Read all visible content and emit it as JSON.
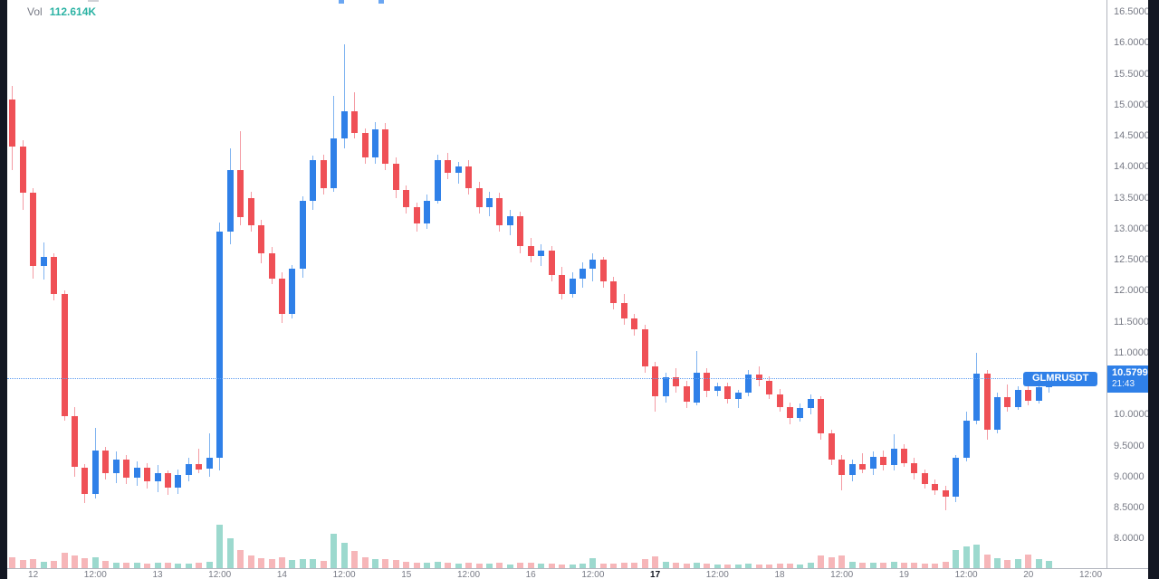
{
  "legend": {
    "vol_label": "Vol",
    "vol_value": "112.614K"
  },
  "symbol_label": "GLMRUSDT",
  "price_tag": {
    "price": "10.5799",
    "countdown": "21:43"
  },
  "colors": {
    "up_body": "#2f80e8",
    "down_body": "#ef5056",
    "up_wick": "#7fb3f0",
    "down_wick": "#f49ba3",
    "vol_up": "#9cd9ce",
    "vol_down": "#f6b6b9",
    "accent_blue": "#2f80e8",
    "axis_text": "#787b86",
    "panel_dark": "#131722",
    "vol_value_teal": "#2cb3a4"
  },
  "price_axis": {
    "labels": [
      "16.5000",
      "16.0000",
      "15.5000",
      "15.0000",
      "14.5000",
      "14.0000",
      "13.5000",
      "13.0000",
      "12.5000",
      "12.0000",
      "11.5000",
      "11.0000",
      "10.5000",
      "10.0000",
      "9.5000",
      "9.0000",
      "8.5000",
      "8.0000"
    ]
  },
  "time_axis": {
    "ticks": [
      {
        "label": "12",
        "index": 2,
        "bold": false
      },
      {
        "label": "12:00",
        "index": 8,
        "bold": false
      },
      {
        "label": "13",
        "index": 14,
        "bold": false
      },
      {
        "label": "12:00",
        "index": 20,
        "bold": false
      },
      {
        "label": "14",
        "index": 26,
        "bold": false
      },
      {
        "label": "12:00",
        "index": 32,
        "bold": false
      },
      {
        "label": "15",
        "index": 38,
        "bold": false
      },
      {
        "label": "12:00",
        "index": 44,
        "bold": false
      },
      {
        "label": "16",
        "index": 50,
        "bold": false
      },
      {
        "label": "12:00",
        "index": 56,
        "bold": false
      },
      {
        "label": "17",
        "index": 62,
        "bold": true
      },
      {
        "label": "12:00",
        "index": 68,
        "bold": false
      },
      {
        "label": "18",
        "index": 74,
        "bold": false
      },
      {
        "label": "12:00",
        "index": 80,
        "bold": false
      },
      {
        "label": "19",
        "index": 86,
        "bold": false
      },
      {
        "label": "12:00",
        "index": 92,
        "bold": false
      },
      {
        "label": "20",
        "index": 98,
        "bold": false
      },
      {
        "label": "12:00",
        "index": 104,
        "bold": false
      }
    ]
  },
  "chart_data": {
    "type": "candlestick",
    "symbol": "GLMRUSDT",
    "interval": "2h",
    "title": "GLMRUSDT with volume",
    "last_price": 10.5799,
    "price_line": 10.5799,
    "ylim": [
      7.52,
      16.69
    ],
    "y_ticks": [
      16.5,
      16.0,
      15.5,
      15.0,
      14.5,
      14.0,
      13.5,
      13.0,
      12.5,
      12.0,
      11.5,
      11.0,
      10.5,
      10.0,
      9.5,
      9.0,
      8.5,
      8.0
    ],
    "x_days": [
      "12",
      "13",
      "14",
      "15",
      "16",
      "17",
      "18",
      "19",
      "20"
    ],
    "legend_position": "top-left",
    "grid": false,
    "candles_ohlcv": [
      [
        15.08,
        15.3,
        13.95,
        14.33,
        300
      ],
      [
        14.33,
        14.43,
        13.3,
        13.58,
        220
      ],
      [
        13.58,
        13.66,
        12.2,
        12.4,
        260
      ],
      [
        12.4,
        12.78,
        12.18,
        12.55,
        180
      ],
      [
        12.55,
        12.6,
        11.85,
        11.95,
        200
      ],
      [
        11.95,
        12.0,
        9.9,
        9.98,
        420
      ],
      [
        9.98,
        10.12,
        9.0,
        9.15,
        350
      ],
      [
        9.15,
        9.2,
        8.58,
        8.72,
        280
      ],
      [
        8.72,
        9.78,
        8.65,
        9.42,
        300
      ],
      [
        9.42,
        9.48,
        8.95,
        9.05,
        200
      ],
      [
        9.05,
        9.4,
        8.9,
        9.28,
        160
      ],
      [
        9.28,
        9.35,
        8.88,
        8.98,
        140
      ],
      [
        8.98,
        9.25,
        8.85,
        9.15,
        150
      ],
      [
        9.15,
        9.22,
        8.8,
        8.92,
        130
      ],
      [
        8.92,
        9.18,
        8.75,
        9.05,
        160
      ],
      [
        9.05,
        9.1,
        8.7,
        8.82,
        140
      ],
      [
        8.82,
        9.12,
        8.72,
        9.02,
        120
      ],
      [
        9.02,
        9.3,
        8.92,
        9.2,
        130
      ],
      [
        9.2,
        9.45,
        9.05,
        9.12,
        150
      ],
      [
        9.12,
        9.7,
        9.0,
        9.3,
        180
      ],
      [
        9.3,
        13.1,
        9.1,
        12.95,
        1200
      ],
      [
        12.95,
        14.3,
        12.75,
        13.95,
        820
      ],
      [
        13.95,
        14.57,
        13.05,
        13.18,
        500
      ],
      [
        13.5,
        13.6,
        12.95,
        13.05,
        360
      ],
      [
        13.05,
        13.15,
        12.45,
        12.6,
        280
      ],
      [
        12.6,
        12.7,
        12.1,
        12.2,
        240
      ],
      [
        12.2,
        12.3,
        11.48,
        11.62,
        300
      ],
      [
        11.62,
        12.42,
        11.55,
        12.35,
        220
      ],
      [
        12.35,
        13.52,
        12.2,
        13.45,
        260
      ],
      [
        13.45,
        14.18,
        13.3,
        14.1,
        240
      ],
      [
        14.1,
        14.2,
        13.55,
        13.65,
        200
      ],
      [
        13.65,
        15.15,
        13.6,
        14.45,
        950
      ],
      [
        14.45,
        15.97,
        14.3,
        14.9,
        700
      ],
      [
        14.9,
        15.2,
        14.45,
        14.55,
        480
      ],
      [
        14.55,
        14.62,
        14.05,
        14.15,
        300
      ],
      [
        14.15,
        14.72,
        14.05,
        14.6,
        260
      ],
      [
        14.6,
        14.7,
        13.95,
        14.05,
        240
      ],
      [
        14.05,
        14.15,
        13.5,
        13.62,
        220
      ],
      [
        13.62,
        13.7,
        13.25,
        13.35,
        180
      ],
      [
        13.35,
        13.42,
        12.95,
        13.08,
        160
      ],
      [
        13.08,
        13.55,
        13.0,
        13.45,
        150
      ],
      [
        13.45,
        14.2,
        13.4,
        14.1,
        170
      ],
      [
        14.1,
        14.22,
        13.8,
        13.9,
        140
      ],
      [
        13.9,
        14.08,
        13.72,
        14.0,
        130
      ],
      [
        14.0,
        14.1,
        13.55,
        13.65,
        150
      ],
      [
        13.65,
        13.75,
        13.25,
        13.35,
        130
      ],
      [
        13.35,
        13.6,
        13.2,
        13.5,
        120
      ],
      [
        13.5,
        13.58,
        12.95,
        13.05,
        140
      ],
      [
        13.05,
        13.3,
        12.9,
        13.2,
        110
      ],
      [
        13.2,
        13.28,
        12.6,
        12.72,
        160
      ],
      [
        12.72,
        12.85,
        12.45,
        12.55,
        140
      ],
      [
        12.55,
        12.75,
        12.4,
        12.65,
        120
      ],
      [
        12.65,
        12.72,
        12.15,
        12.25,
        130
      ],
      [
        12.25,
        12.38,
        11.85,
        11.95,
        110
      ],
      [
        11.95,
        12.3,
        11.88,
        12.2,
        100
      ],
      [
        12.2,
        12.45,
        12.05,
        12.35,
        120
      ],
      [
        12.35,
        12.6,
        12.15,
        12.5,
        280
      ],
      [
        12.5,
        12.55,
        12.05,
        12.15,
        130
      ],
      [
        12.15,
        12.22,
        11.7,
        11.8,
        120
      ],
      [
        11.8,
        11.95,
        11.45,
        11.55,
        140
      ],
      [
        11.55,
        11.62,
        11.28,
        11.38,
        160
      ],
      [
        11.38,
        11.45,
        10.68,
        10.78,
        260
      ],
      [
        10.78,
        10.85,
        10.05,
        10.3,
        320
      ],
      [
        10.3,
        10.68,
        10.2,
        10.6,
        180
      ],
      [
        10.6,
        10.75,
        10.35,
        10.45,
        140
      ],
      [
        10.45,
        10.55,
        10.1,
        10.2,
        130
      ],
      [
        10.2,
        11.02,
        10.15,
        10.68,
        150
      ],
      [
        10.68,
        10.75,
        10.28,
        10.38,
        120
      ],
      [
        10.38,
        10.52,
        10.3,
        10.46,
        110
      ],
      [
        10.46,
        10.52,
        10.18,
        10.25,
        100
      ],
      [
        10.25,
        10.4,
        10.1,
        10.35,
        90
      ],
      [
        10.35,
        10.72,
        10.3,
        10.65,
        130
      ],
      [
        10.65,
        10.78,
        10.45,
        10.55,
        110
      ],
      [
        10.55,
        10.62,
        10.25,
        10.32,
        100
      ],
      [
        10.32,
        10.42,
        10.05,
        10.12,
        130
      ],
      [
        10.12,
        10.2,
        9.85,
        9.95,
        120
      ],
      [
        9.95,
        10.18,
        9.88,
        10.1,
        110
      ],
      [
        10.1,
        10.32,
        10.0,
        10.25,
        140
      ],
      [
        10.25,
        10.3,
        9.6,
        9.7,
        340
      ],
      [
        9.7,
        9.75,
        9.18,
        9.28,
        300
      ],
      [
        9.28,
        9.35,
        8.78,
        9.02,
        360
      ],
      [
        9.02,
        9.28,
        8.92,
        9.2,
        180
      ],
      [
        9.2,
        9.38,
        9.05,
        9.12,
        150
      ],
      [
        9.12,
        9.4,
        9.02,
        9.32,
        160
      ],
      [
        9.32,
        9.42,
        9.1,
        9.18,
        140
      ],
      [
        9.18,
        9.68,
        9.1,
        9.45,
        170
      ],
      [
        9.45,
        9.52,
        9.15,
        9.22,
        160
      ],
      [
        9.22,
        9.3,
        8.95,
        9.05,
        140
      ],
      [
        9.05,
        9.12,
        8.8,
        8.88,
        130
      ],
      [
        8.88,
        8.95,
        8.7,
        8.78,
        120
      ],
      [
        8.78,
        8.85,
        8.45,
        8.68,
        180
      ],
      [
        8.68,
        9.35,
        8.58,
        9.3,
        500
      ],
      [
        9.3,
        10.05,
        9.25,
        9.9,
        600
      ],
      [
        9.9,
        11.0,
        9.85,
        10.66,
        650
      ],
      [
        10.66,
        10.72,
        9.6,
        9.75,
        380
      ],
      [
        9.75,
        10.35,
        9.7,
        10.28,
        280
      ],
      [
        10.28,
        10.48,
        10.05,
        10.12,
        220
      ],
      [
        10.12,
        10.45,
        10.08,
        10.4,
        240
      ],
      [
        10.4,
        10.5,
        10.15,
        10.22,
        380
      ],
      [
        10.22,
        10.48,
        10.18,
        10.44,
        260
      ],
      [
        10.44,
        10.65,
        10.35,
        10.5799,
        200
      ]
    ]
  }
}
